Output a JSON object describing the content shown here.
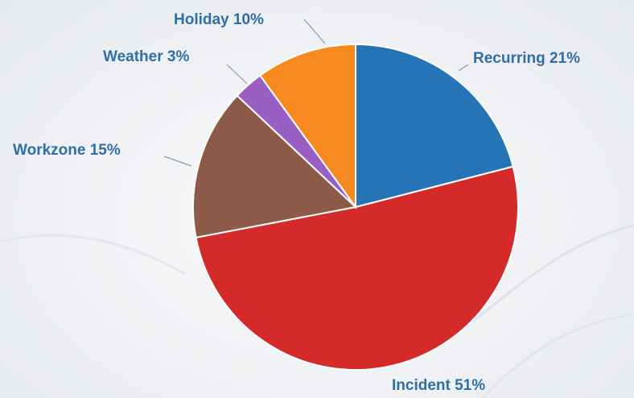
{
  "chart_data": {
    "type": "pie",
    "title": "",
    "slices": [
      {
        "label": "Recurring 21%",
        "category": "Recurring",
        "value": 21,
        "color": "#2674b5"
      },
      {
        "label": "Incident 51%",
        "category": "Incident",
        "value": 51,
        "color": "#d42a2a"
      },
      {
        "label": "Workzone 15%",
        "category": "Workzone",
        "value": 15,
        "color": "#8d5a4a"
      },
      {
        "label": "Weather 3%",
        "category": "Weather",
        "value": 3,
        "color": "#9a5fc2"
      },
      {
        "label": "Holiday 10%",
        "category": "Holiday",
        "value": 10,
        "color": "#f6891f"
      }
    ],
    "start_angle_deg": 0,
    "direction": "clockwise",
    "legend": "none",
    "data_labels": "outside-with-leader-lines"
  }
}
